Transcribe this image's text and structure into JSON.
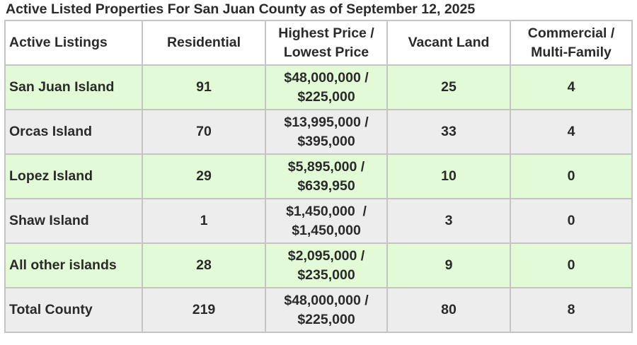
{
  "title": "Active Listed Properties For San Juan County as of September 12, 2025",
  "table": {
    "headers": {
      "col1": "Active Listings",
      "col2": "Residential",
      "col3_line1": "Highest Price /",
      "col3_line2": "Lowest Price",
      "col4": "Vacant Land",
      "col5_line1": "Commercial /",
      "col5_line2": "Multi-Family"
    },
    "rows": [
      {
        "area": "San Juan Island",
        "residential": "91",
        "price_high": "$48,000,000 /",
        "price_low": "$225,000",
        "vacant_land": "25",
        "commercial": "4",
        "bg": "#e2fbd6"
      },
      {
        "area": "Orcas Island",
        "residential": "70",
        "price_high": "$13,995,000 /",
        "price_low": "$395,000",
        "vacant_land": "33",
        "commercial": "4",
        "bg": "#ededed"
      },
      {
        "area": "Lopez Island",
        "residential": "29",
        "price_high": "$5,895,000 /",
        "price_low": "$639,950",
        "vacant_land": "10",
        "commercial": "0",
        "bg": "#e2fbd6"
      },
      {
        "area": "Shaw Island",
        "residential": "1",
        "price_high": "$1,450,000  /",
        "price_low": "$1,450,000",
        "vacant_land": "3",
        "commercial": "0",
        "bg": "#ededed"
      },
      {
        "area": "All other islands",
        "residential": "28",
        "price_high": "$2,095,000 /",
        "price_low": "$235,000",
        "vacant_land": "9",
        "commercial": "0",
        "bg": "#e2fbd6"
      },
      {
        "area": "Total County",
        "residential": "219",
        "price_high": "$48,000,000 /",
        "price_low": "$225,000",
        "vacant_land": "80",
        "commercial": "8",
        "bg": "#ededed"
      }
    ]
  },
  "colors": {
    "green_row": "#e2fbd6",
    "gray_row": "#ededed",
    "border": "#c4c4c4",
    "text": "#2a2a2a"
  }
}
